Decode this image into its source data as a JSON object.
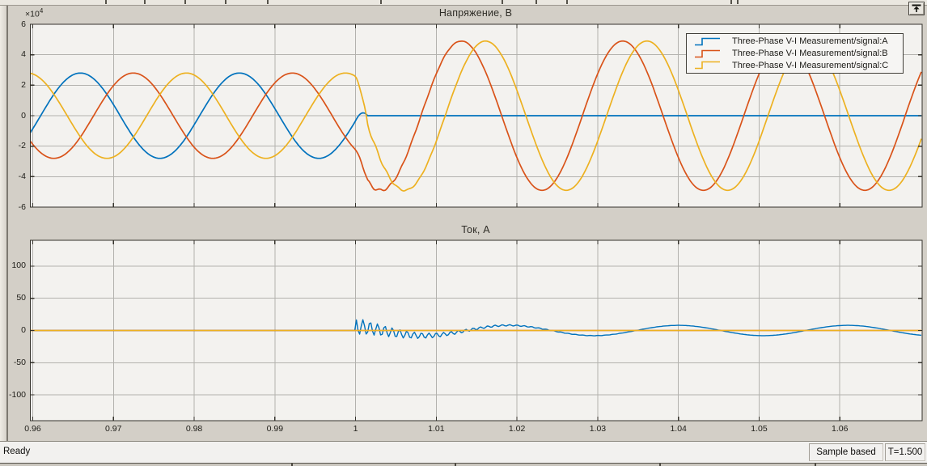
{
  "window": {
    "top_right_button": "dock",
    "colors": {
      "figure_bg": "#d3cfc7",
      "plot_bg": "#f3f2ef",
      "grid": "#b3b2ae",
      "phase_a": "#0072BD",
      "phase_b": "#D95319",
      "phase_c": "#EDB120"
    }
  },
  "status_bar": {
    "status": "Ready",
    "mode": "Sample based",
    "time": "T=1.500"
  },
  "chart_data": [
    {
      "type": "line",
      "title": "Напряжение, В",
      "xlabel": "",
      "ylabel": "",
      "y_scale": {
        "base": "×10",
        "exp": "4"
      },
      "xlim": [
        0.9597,
        1.0702
      ],
      "ylim": [
        -60000,
        60000
      ],
      "grid": true,
      "show_x_tick_labels": false,
      "xticks": {
        "values": [
          0.96,
          0.97,
          0.98,
          0.99,
          1,
          1.01,
          1.02,
          1.03,
          1.04,
          1.05,
          1.06
        ],
        "labels": [
          "0.96",
          "0.97",
          "0.98",
          "0.99",
          "1",
          "1.01",
          "1.02",
          "1.03",
          "1.04",
          "1.05",
          "1.06"
        ]
      },
      "yticks": {
        "values": [
          60000,
          40000,
          20000,
          0,
          -20000,
          -40000,
          -60000
        ],
        "labels": [
          "6",
          "4",
          "2",
          "0",
          "-2",
          "-4",
          "-6"
        ]
      },
      "legend": {
        "position": "top-right",
        "entries": [
          {
            "label": "Three-Phase V-I Measurement/signal:A",
            "color": "#0072BD"
          },
          {
            "label": "Three-Phase V-I Measurement/signal:B",
            "color": "#D95319"
          },
          {
            "label": "Three-Phase V-I Measurement/signal:C",
            "color": "#EDB120"
          }
        ]
      },
      "sample_step": 0.0002,
      "series": [
        {
          "name": "Three-Phase V-I Measurement/signal:A",
          "color": "#0072BD",
          "model": {
            "type": "fault_voltage",
            "fault_time": 1.0,
            "blend": 0.0015,
            "pre": {
              "amp": 28000,
              "period": 0.0197,
              "t_peak": 0.9659
            },
            "post": {
              "amp": 0,
              "period": 0.02,
              "t_peak": 1.0
            }
          }
        },
        {
          "name": "Three-Phase V-I Measurement/signal:B",
          "color": "#D95319",
          "model": {
            "type": "fault_voltage",
            "fault_time": 1.0,
            "blend": 0.0015,
            "pre": {
              "amp": 28000,
              "period": 0.0197,
              "t_peak": 0.97247
            },
            "post": {
              "amp": 49000,
              "period": 0.02,
              "t_peak": 1.0131,
              "ripple": {
                "amp": 1600,
                "tau": 0.005,
                "freq": 750,
                "phase": 0
              }
            }
          }
        },
        {
          "name": "Three-Phase V-I Measurement/signal:C",
          "color": "#EDB120",
          "model": {
            "type": "fault_voltage",
            "fault_time": 1.0,
            "blend": 0.0015,
            "pre": {
              "amp": 28000,
              "period": 0.0197,
              "t_peak": 0.97904
            },
            "post": {
              "amp": 49000,
              "period": 0.02,
              "t_peak": 1.0161,
              "ripple": {
                "amp": 1600,
                "tau": 0.005,
                "freq": 750,
                "phase": 2.1
              }
            }
          }
        }
      ]
    },
    {
      "type": "line",
      "title": "Ток, А",
      "xlabel": "",
      "ylabel": "",
      "xlim": [
        0.9597,
        1.0702
      ],
      "ylim": [
        -140,
        140
      ],
      "grid": true,
      "show_x_tick_labels": true,
      "xticks": {
        "values": [
          0.96,
          0.97,
          0.98,
          0.99,
          1,
          1.01,
          1.02,
          1.03,
          1.04,
          1.05,
          1.06
        ],
        "labels": [
          "0.96",
          "0.97",
          "0.98",
          "0.99",
          "1",
          "1.01",
          "1.02",
          "1.03",
          "1.04",
          "1.05",
          "1.06"
        ]
      },
      "yticks": {
        "values": [
          100,
          50,
          0,
          -50,
          -100
        ],
        "labels": [
          "100",
          "50",
          "0",
          "-50",
          "-100"
        ]
      },
      "sample_step": 0.0002,
      "series": [
        {
          "name": "Three-Phase V-I Measurement/signal:A",
          "color": "#0072BD",
          "model": {
            "type": "fault_current",
            "fault_time": 1.0,
            "slow": {
              "amp": 8,
              "period": 0.021,
              "t_peak": 1.019
            },
            "ring": {
              "amp": 13,
              "tau": 0.0075,
              "freq": 1100
            }
          }
        },
        {
          "name": "Three-Phase V-I Measurement/signal:B",
          "color": "#D95319",
          "model": {
            "type": "constant",
            "value": 0
          }
        },
        {
          "name": "Three-Phase V-I Measurement/signal:C",
          "color": "#EDB120",
          "model": {
            "type": "constant",
            "value": 0
          }
        }
      ]
    }
  ]
}
